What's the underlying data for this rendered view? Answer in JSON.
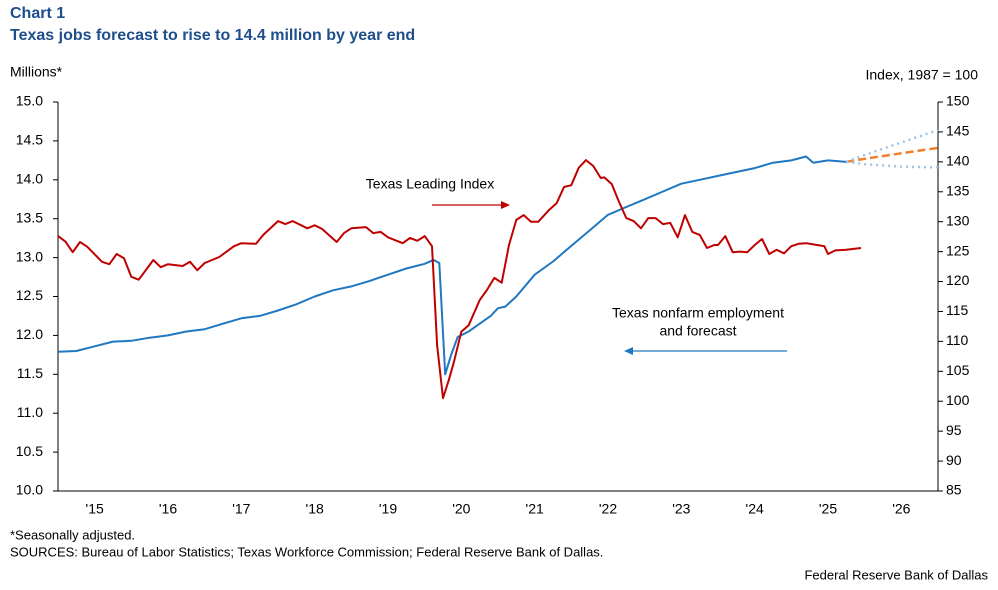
{
  "chart_data": {
    "type": "line",
    "chart_label": "Chart 1",
    "title": "Texas jobs forecast to rise to 14.4 million by year end",
    "y_label": "Millions*",
    "y2_label": "Index,  1987 = 100",
    "footnote": "*Seasonally adjusted.",
    "sources": "SOURCES: Bureau of Labor Statistics; Texas Workforce Commission; Federal Reserve Bank of Dallas.",
    "credit": "Federal Reserve Bank of Dallas",
    "xlim": [
      2015,
      2027
    ],
    "xticks": [
      {
        "value": 2015.5,
        "label": "'15"
      },
      {
        "value": 2016.5,
        "label": "'16"
      },
      {
        "value": 2017.5,
        "label": "'17"
      },
      {
        "value": 2018.5,
        "label": "'18"
      },
      {
        "value": 2019.5,
        "label": "'19"
      },
      {
        "value": 2020.5,
        "label": "'20"
      },
      {
        "value": 2021.5,
        "label": "'21"
      },
      {
        "value": 2022.5,
        "label": "'22"
      },
      {
        "value": 2023.5,
        "label": "'23"
      },
      {
        "value": 2024.5,
        "label": "'24"
      },
      {
        "value": 2025.5,
        "label": "'25"
      },
      {
        "value": 2026.5,
        "label": "'26"
      }
    ],
    "ylim": [
      10,
      15
    ],
    "yticks": [
      {
        "value": 10,
        "label": "10.0"
      },
      10.5,
      {
        "value": 11,
        "label": "11.0"
      },
      11.5,
      {
        "value": 12,
        "label": "12.0"
      },
      12.5,
      {
        "value": 13,
        "label": "13.0"
      },
      13.5,
      {
        "value": 14,
        "label": "14.0"
      },
      14.5,
      {
        "value": 15,
        "label": "15.0"
      }
    ],
    "y2lim": [
      85,
      150
    ],
    "y2ticks": [
      85,
      90,
      95,
      100,
      105,
      110,
      115,
      120,
      125,
      130,
      135,
      140,
      145,
      150
    ],
    "series": [
      {
        "name": "Texas nonfarm employment",
        "color": "#1f78c1",
        "dash": "solid",
        "x": [
          2015.0,
          2015.25,
          2015.5,
          2015.75,
          2016.0,
          2016.25,
          2016.5,
          2016.75,
          2017.0,
          2017.25,
          2017.5,
          2017.75,
          2018.0,
          2018.25,
          2018.5,
          2018.75,
          2019.0,
          2019.25,
          2019.5,
          2019.75,
          2020.0,
          2020.12,
          2020.2,
          2020.28,
          2020.36,
          2020.45,
          2020.6,
          2020.75,
          2020.9,
          2021.0,
          2021.1,
          2021.25,
          2021.5,
          2021.75,
          2022.0,
          2022.25,
          2022.5,
          2022.75,
          2023.0,
          2023.25,
          2023.5,
          2023.75,
          2024.0,
          2024.25,
          2024.5,
          2024.75,
          2025.0,
          2025.2,
          2025.3,
          2025.5,
          2025.75
        ],
        "values": [
          11.79,
          11.8,
          11.86,
          11.92,
          11.93,
          11.97,
          12.0,
          12.05,
          12.08,
          12.15,
          12.22,
          12.25,
          12.32,
          12.4,
          12.5,
          12.58,
          12.63,
          12.7,
          12.78,
          12.86,
          12.92,
          12.97,
          12.93,
          11.5,
          11.75,
          11.98,
          12.05,
          12.15,
          12.25,
          12.35,
          12.37,
          12.5,
          12.78,
          12.95,
          13.15,
          13.35,
          13.55,
          13.65,
          13.75,
          13.85,
          13.95,
          14.0,
          14.05,
          14.1,
          14.15,
          14.22,
          14.25,
          14.3,
          14.22,
          14.25,
          14.23
        ]
      },
      {
        "name": "and forecast",
        "color": "#f07f2e",
        "dash": "dash",
        "x": [
          2025.75,
          2026.0,
          2026.5,
          2027.0
        ],
        "values": [
          14.23,
          14.27,
          14.34,
          14.41
        ]
      },
      {
        "color": "#9dc3e6",
        "dash": "dot",
        "x": [
          2025.75,
          2026.0,
          2026.5,
          2027.0
        ],
        "values": [
          14.23,
          14.32,
          14.48,
          14.64
        ]
      },
      {
        "color": "#9dc3e6",
        "dash": "dot",
        "x": [
          2025.75,
          2026.0,
          2026.5,
          2027.0
        ],
        "values": [
          14.23,
          14.2,
          14.17,
          14.16
        ]
      },
      {
        "name": "Texas Leading Index",
        "color": "#c00000",
        "dash": "solid",
        "axis": "y2",
        "x": [
          2015.0,
          2015.1,
          2015.2,
          2015.3,
          2015.4,
          2015.6,
          2015.7,
          2015.8,
          2015.9,
          2016.0,
          2016.1,
          2016.3,
          2016.4,
          2016.5,
          2016.7,
          2016.8,
          2016.9,
          2017.0,
          2017.2,
          2017.4,
          2017.5,
          2017.7,
          2017.8,
          2018.0,
          2018.1,
          2018.2,
          2018.4,
          2018.5,
          2018.6,
          2018.8,
          2018.9,
          2019.0,
          2019.2,
          2019.3,
          2019.4,
          2019.5,
          2019.7,
          2019.8,
          2019.9,
          2020.0,
          2020.1,
          2020.17,
          2020.25,
          2020.33,
          2020.4,
          2020.5,
          2020.6,
          2020.75,
          2020.85,
          2020.95,
          2021.05,
          2021.15,
          2021.25,
          2021.35,
          2021.45,
          2021.55,
          2021.7,
          2021.8,
          2021.9,
          2022.0,
          2022.1,
          2022.2,
          2022.3,
          2022.4,
          2022.45,
          2022.55,
          2022.65,
          2022.75,
          2022.85,
          2022.95,
          2023.05,
          2023.15,
          2023.25,
          2023.35,
          2023.45,
          2023.55,
          2023.65,
          2023.75,
          2023.85,
          2023.95,
          2024.0,
          2024.1,
          2024.2,
          2024.3,
          2024.4,
          2024.5,
          2024.6,
          2024.7,
          2024.8,
          2024.9,
          2025.0,
          2025.1,
          2025.2,
          2025.3,
          2025.45,
          2025.5,
          2025.6,
          2025.75,
          2025.95
        ],
        "values": [
          127.6,
          126.7,
          124.9,
          126.6,
          125.8,
          123.3,
          122.9,
          124.6,
          123.9,
          120.8,
          120.3,
          123.6,
          122.4,
          122.9,
          122.6,
          123.3,
          121.9,
          123.1,
          124.1,
          125.9,
          126.4,
          126.3,
          127.8,
          130.1,
          129.6,
          130.1,
          128.9,
          129.4,
          128.8,
          126.6,
          128.1,
          128.9,
          129.1,
          128.1,
          128.3,
          127.4,
          126.4,
          127.3,
          126.8,
          127.6,
          125.9,
          109.4,
          100.5,
          103.6,
          106.6,
          111.6,
          112.7,
          116.9,
          118.6,
          120.6,
          119.8,
          126.1,
          130.3,
          131.1,
          130.0,
          130.0,
          132.0,
          133.1,
          135.8,
          136.1,
          139.0,
          140.3,
          139.3,
          137.3,
          137.4,
          136.3,
          133.3,
          130.6,
          130.1,
          128.9,
          130.6,
          130.6,
          129.6,
          129.8,
          127.4,
          131.1,
          128.3,
          127.8,
          125.6,
          126.1,
          126.1,
          127.6,
          124.9,
          125.0,
          124.9,
          126.1,
          127.1,
          124.6,
          125.3,
          124.7,
          125.9,
          126.3,
          126.4,
          126.2,
          125.9,
          124.6,
          125.2,
          125.3,
          125.6
        ]
      }
    ]
  }
}
